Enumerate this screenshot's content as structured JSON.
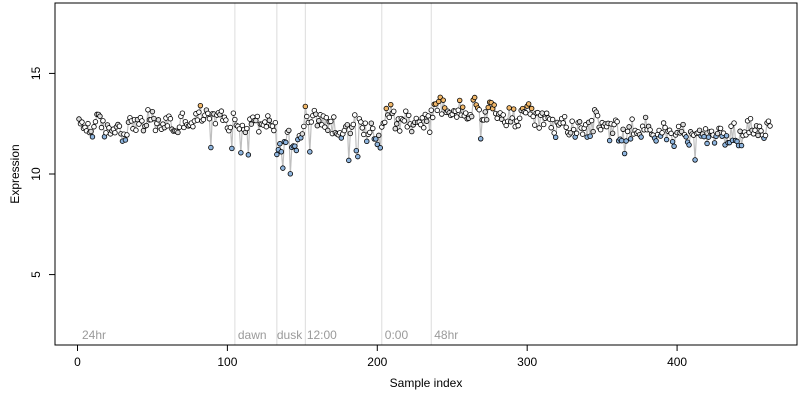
{
  "chart_data": {
    "type": "scatter",
    "title": "",
    "xlabel": "Sample index",
    "ylabel": "Expression",
    "xlim": [
      -15,
      480
    ],
    "ylim": [
      1.5,
      18.5
    ],
    "x_ticks": [
      0,
      100,
      200,
      300,
      400
    ],
    "y_ticks": [
      5,
      10,
      15
    ],
    "grid": false,
    "vlines": [
      105,
      133,
      152,
      203,
      236
    ],
    "annotations": [
      {
        "text": "24hr",
        "x": 3,
        "y": 2
      },
      {
        "text": "dawn",
        "x": 107,
        "y": 2
      },
      {
        "text": "dusk",
        "x": 133,
        "y": 2
      },
      {
        "text": "12:00",
        "x": 153,
        "y": 2
      },
      {
        "text": "0:00",
        "x": 205,
        "y": 2
      },
      {
        "text": "48hr",
        "x": 238,
        "y": 2
      }
    ],
    "segments": [
      {
        "x0": 1,
        "x1": 104,
        "base": 12.2,
        "trend": 0.6,
        "amp": 0.45
      },
      {
        "x0": 105,
        "x1": 132,
        "base": 12.4,
        "trend": 0.0,
        "amp": 0.35
      },
      {
        "x0": 133,
        "x1": 151,
        "base": 11.6,
        "trend": 0.2,
        "amp": 0.45
      },
      {
        "x0": 152,
        "x1": 202,
        "base": 12.8,
        "trend": -0.9,
        "amp": 0.55
      },
      {
        "x0": 203,
        "x1": 235,
        "base": 13.1,
        "trend": -0.8,
        "amp": 0.5
      },
      {
        "x0": 236,
        "x1": 300,
        "base": 13.3,
        "trend": -0.5,
        "amp": 0.45
      },
      {
        "x0": 301,
        "x1": 370,
        "base": 12.6,
        "trend": -0.5,
        "amp": 0.6
      },
      {
        "x0": 371,
        "x1": 462,
        "base": 12.1,
        "trend": -0.1,
        "amp": 0.45
      }
    ],
    "colors": {
      "point_fill_low": "#8fb6e0",
      "point_fill_high": "#f2b86a",
      "point_fill_mid": "#dddddd",
      "point_stroke": "#000000",
      "line_color": "#bfbfbf",
      "vline_color": "#dcdcdc"
    }
  }
}
